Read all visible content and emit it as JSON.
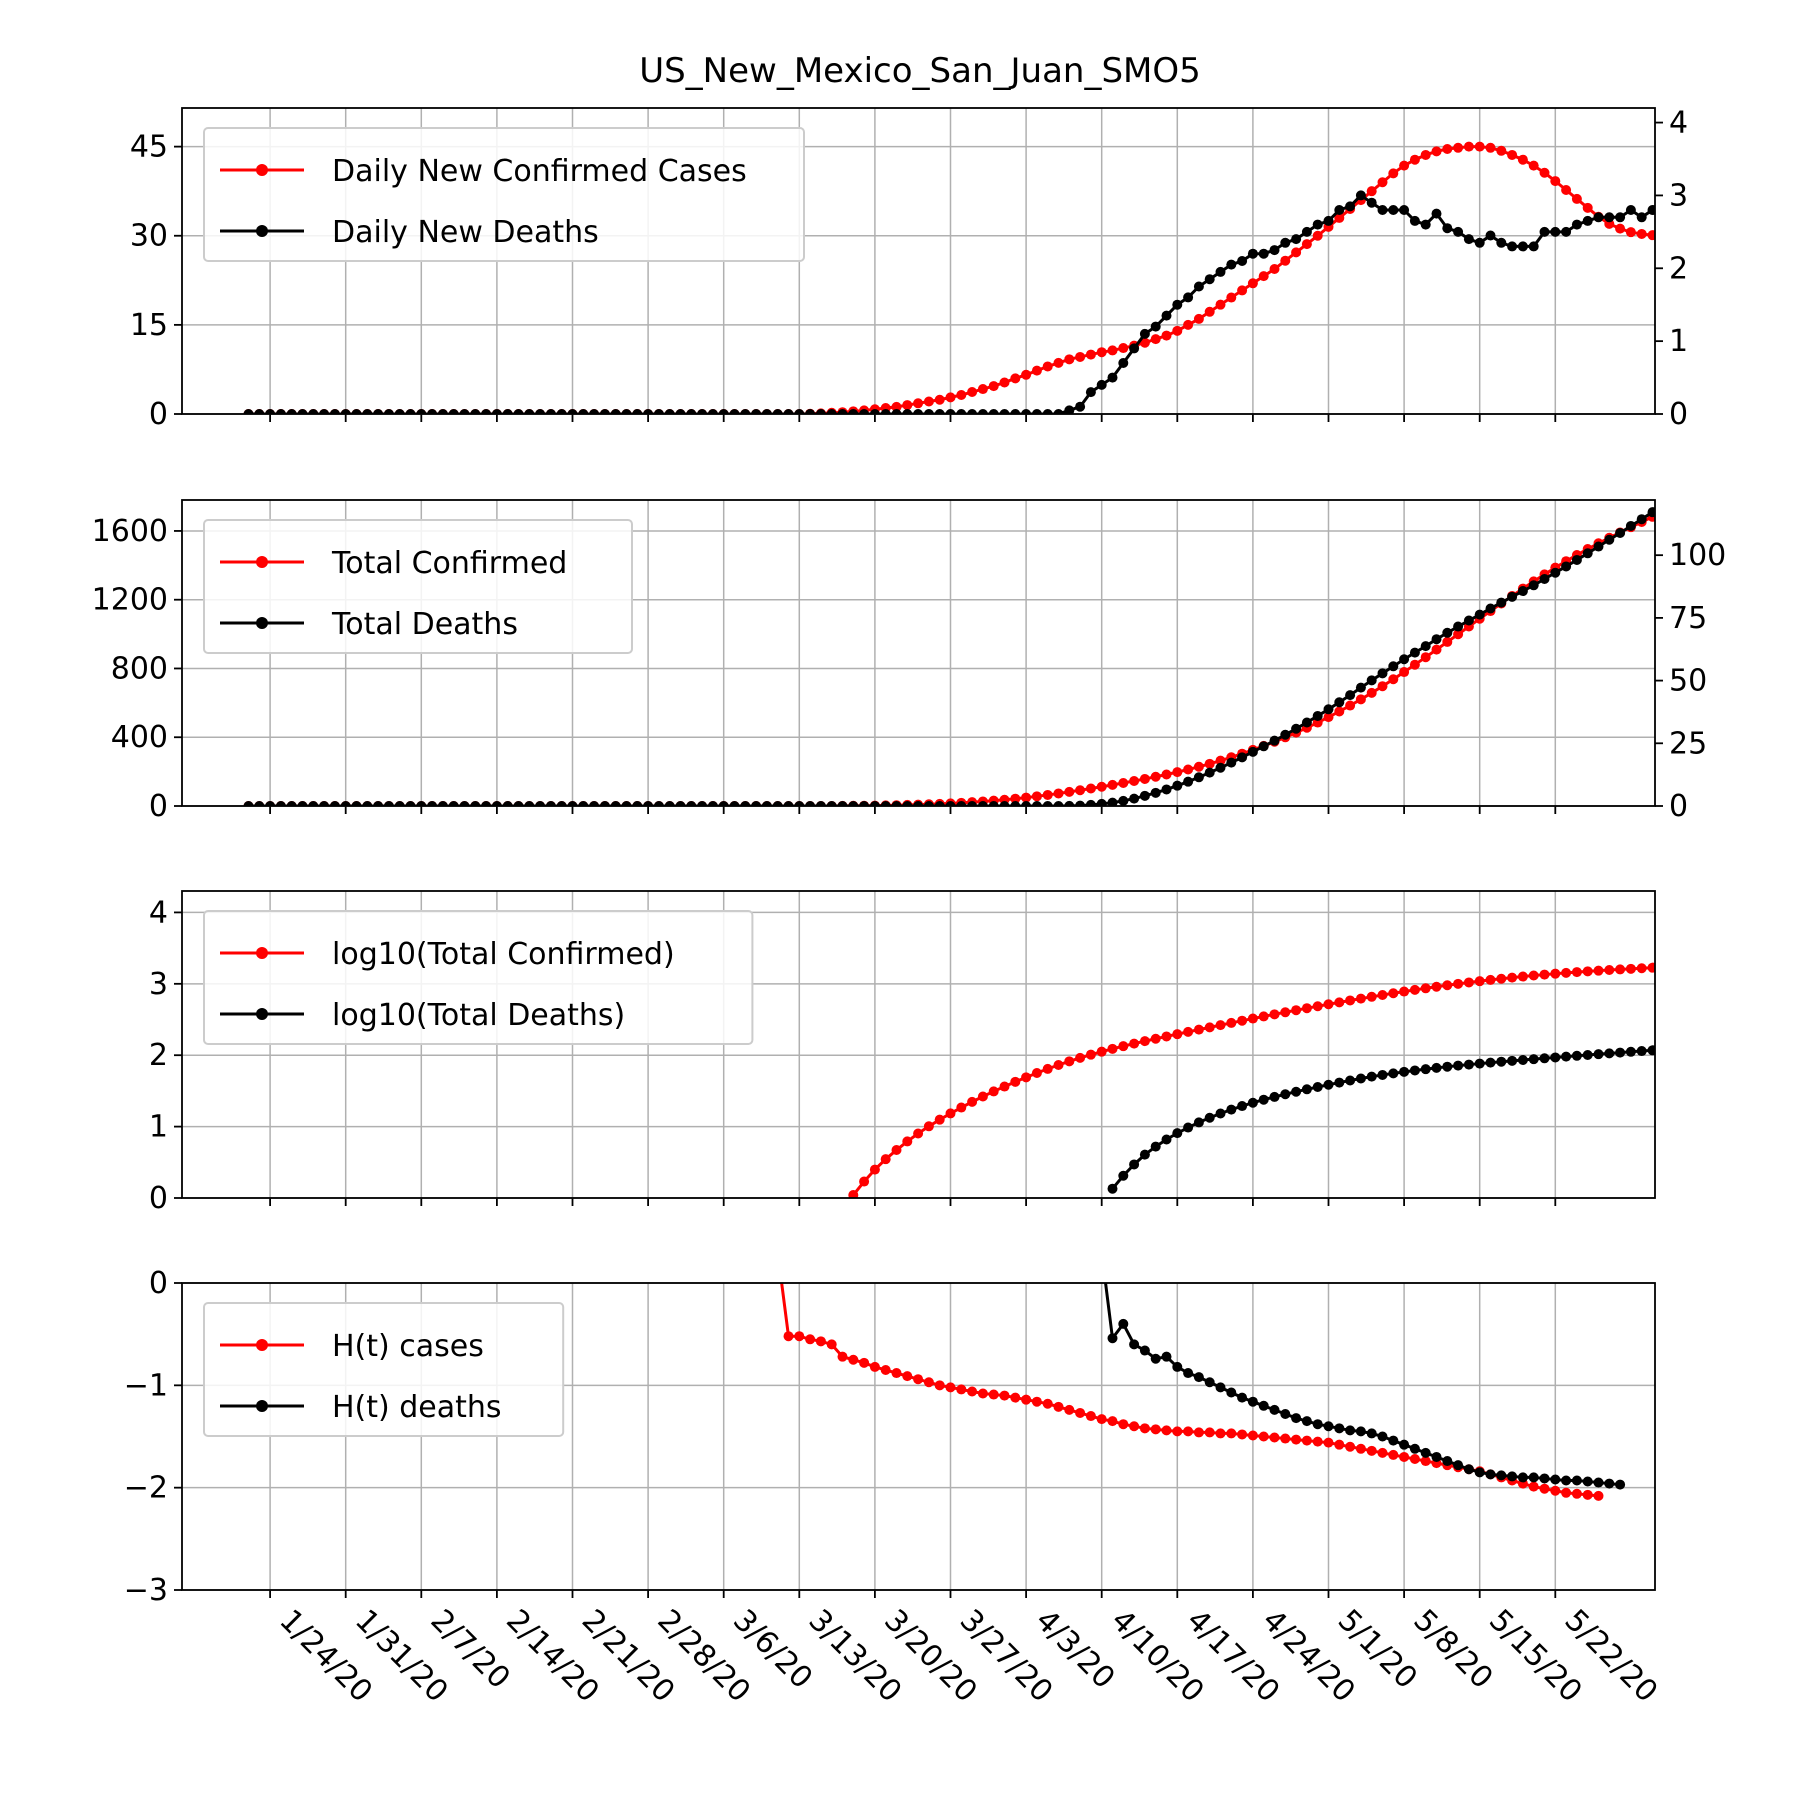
{
  "figure": {
    "title": "US_New_Mexico_San_Juan_SMO5"
  },
  "colors": {
    "cases": "#ff0000",
    "deaths": "#000000",
    "grid": "#b0b0b0"
  },
  "chart_data": [
    {
      "type": "line",
      "title": "US_New_Mexico_San_Juan_SMO5",
      "x_axis": "dates 1/22/20 .. 5/26/20 (daily)",
      "x_start": "1/22/20",
      "x_count": 126,
      "x_tick_labels": [
        "1/24/20",
        "1/31/20",
        "2/7/20",
        "2/14/20",
        "2/21/20",
        "2/28/20",
        "3/6/20",
        "3/13/20",
        "3/20/20",
        "3/27/20",
        "4/3/20",
        "4/10/20",
        "4/17/20",
        "4/24/20",
        "5/1/20",
        "5/8/20",
        "5/15/20",
        "5/22/20"
      ],
      "ylim": [
        0,
        51.5
      ],
      "y_ticks": [
        "0",
        "15",
        "30",
        "45"
      ],
      "y2lim": [
        0,
        4.2
      ],
      "y2_ticks": [
        "0",
        "1",
        "2",
        "3",
        "4"
      ],
      "grid": true,
      "legend_placement": "upper-left",
      "series": [
        {
          "name": "Daily New Confirmed Cases",
          "axis": "left",
          "color": "#ff0000",
          "values": [
            0,
            0,
            0,
            0,
            0,
            0,
            0,
            0,
            0,
            0,
            0,
            0,
            0,
            0,
            0,
            0,
            0,
            0,
            0,
            0,
            0,
            0,
            0,
            0,
            0,
            0,
            0,
            0,
            0,
            0,
            0,
            0,
            0,
            0,
            0,
            0,
            0,
            0,
            0,
            0,
            0,
            0,
            0,
            0,
            0,
            0,
            0,
            0,
            0,
            0,
            0,
            0,
            0.05,
            0.1,
            0.2,
            0.3,
            0.45,
            0.6,
            0.8,
            1.0,
            1.2,
            1.5,
            1.8,
            2.1,
            2.4,
            2.8,
            3.2,
            3.7,
            4.2,
            4.7,
            5.3,
            6.0,
            6.6,
            7.3,
            8.0,
            8.6,
            9.2,
            9.6,
            10.0,
            10.4,
            10.7,
            11.1,
            11.5,
            12.0,
            12.6,
            13.2,
            14.0,
            15.0,
            16.0,
            17.2,
            18.4,
            19.6,
            20.8,
            22.0,
            23.2,
            24.4,
            25.8,
            27.2,
            28.6,
            30.0,
            31.5,
            33.0,
            34.5,
            36.0,
            37.5,
            39.0,
            40.5,
            41.8,
            42.8,
            43.6,
            44.2,
            44.6,
            44.8,
            45.0,
            45.0,
            44.8,
            44.3,
            43.6,
            42.8,
            41.8,
            40.6,
            39.2,
            37.7,
            36.2,
            34.7,
            33.2,
            32.0,
            31.2,
            30.6,
            30.3,
            30.1,
            29.9,
            29.8,
            29.8,
            29.8,
            29.8
          ]
        },
        {
          "name": "Daily New Deaths",
          "axis": "right",
          "color": "#000000",
          "values": [
            0,
            0,
            0,
            0,
            0,
            0,
            0,
            0,
            0,
            0,
            0,
            0,
            0,
            0,
            0,
            0,
            0,
            0,
            0,
            0,
            0,
            0,
            0,
            0,
            0,
            0,
            0,
            0,
            0,
            0,
            0,
            0,
            0,
            0,
            0,
            0,
            0,
            0,
            0,
            0,
            0,
            0,
            0,
            0,
            0,
            0,
            0,
            0,
            0,
            0,
            0,
            0,
            0,
            0,
            0,
            0,
            0,
            0,
            0,
            0,
            0,
            0,
            0,
            0,
            0,
            0,
            0,
            0,
            0,
            0,
            0,
            0,
            0,
            0,
            0,
            0,
            0.05,
            0.1,
            0.3,
            0.4,
            0.5,
            0.7,
            0.9,
            1.1,
            1.2,
            1.35,
            1.5,
            1.6,
            1.75,
            1.85,
            1.95,
            2.05,
            2.1,
            2.2,
            2.2,
            2.25,
            2.35,
            2.4,
            2.5,
            2.6,
            2.65,
            2.8,
            2.85,
            3.0,
            2.9,
            2.8,
            2.8,
            2.8,
            2.65,
            2.6,
            2.75,
            2.55,
            2.5,
            2.4,
            2.35,
            2.45,
            2.35,
            2.3,
            2.3,
            2.3,
            2.5,
            2.5,
            2.5,
            2.6,
            2.65,
            2.7,
            2.7,
            2.7,
            2.8,
            2.7,
            2.8,
            2.7,
            2.8
          ]
        }
      ]
    },
    {
      "type": "line",
      "ylim": [
        0,
        1780
      ],
      "y_ticks": [
        "0",
        "400",
        "800",
        "1200",
        "1600"
      ],
      "y2lim": [
        0,
        122
      ],
      "y2_ticks": [
        "0",
        "25",
        "50",
        "75",
        "100"
      ],
      "grid": true,
      "legend_placement": "upper-left",
      "series": [
        {
          "name": "Total Confirmed",
          "axis": "left",
          "color": "#ff0000",
          "derived_from": "cumulative sum of Daily New Confirmed Cases"
        },
        {
          "name": "Total Deaths",
          "axis": "right",
          "color": "#000000",
          "derived_from": "cumulative sum of Daily New Deaths"
        }
      ]
    },
    {
      "type": "line",
      "ylim": [
        0,
        4.3
      ],
      "y_ticks": [
        "0",
        "1",
        "2",
        "3",
        "4"
      ],
      "grid": true,
      "legend_placement": "upper-left",
      "series": [
        {
          "name": "log10(Total Confirmed)",
          "color": "#ff0000",
          "derived_from": "log10 of Total Confirmed"
        },
        {
          "name": "log10(Total Deaths)",
          "color": "#000000",
          "derived_from": "log10 of Total Deaths"
        }
      ]
    },
    {
      "type": "line",
      "ylim": [
        -3,
        0
      ],
      "y_ticks": [
        "−3",
        "−2",
        "−1",
        "0"
      ],
      "grid": true,
      "legend_placement": "upper-left",
      "series": [
        {
          "name": "H(t) cases",
          "color": "#ff0000",
          "start_date": "3/11/20",
          "values": [
            0.3,
            -0.52,
            -0.52,
            -0.55,
            -0.57,
            -0.6,
            -0.72,
            -0.75,
            -0.78,
            -0.82,
            -0.85,
            -0.88,
            -0.91,
            -0.94,
            -0.97,
            -1.0,
            -1.02,
            -1.04,
            -1.06,
            -1.08,
            -1.09,
            -1.1,
            -1.12,
            -1.14,
            -1.16,
            -1.18,
            -1.21,
            -1.24,
            -1.27,
            -1.3,
            -1.33,
            -1.35,
            -1.38,
            -1.4,
            -1.42,
            -1.43,
            -1.44,
            -1.45,
            -1.45,
            -1.46,
            -1.46,
            -1.47,
            -1.47,
            -1.48,
            -1.49,
            -1.5,
            -1.51,
            -1.52,
            -1.53,
            -1.54,
            -1.55,
            -1.56,
            -1.58,
            -1.6,
            -1.62,
            -1.64,
            -1.66,
            -1.68,
            -1.7,
            -1.72,
            -1.74,
            -1.76,
            -1.78,
            -1.8,
            -1.82,
            -1.84,
            -1.87,
            -1.9,
            -1.93,
            -1.96,
            -1.99,
            -2.01,
            -2.03,
            -2.05,
            -2.06,
            -2.07,
            -2.08
          ]
        },
        {
          "name": "H(t) deaths",
          "color": "#000000",
          "start_date": "4/10/20",
          "values": [
            0.3,
            -0.54,
            -0.4,
            -0.6,
            -0.66,
            -0.74,
            -0.72,
            -0.82,
            -0.88,
            -0.92,
            -0.97,
            -1.02,
            -1.07,
            -1.12,
            -1.16,
            -1.2,
            -1.24,
            -1.28,
            -1.32,
            -1.35,
            -1.38,
            -1.4,
            -1.42,
            -1.44,
            -1.45,
            -1.47,
            -1.5,
            -1.54,
            -1.58,
            -1.62,
            -1.66,
            -1.7,
            -1.74,
            -1.78,
            -1.82,
            -1.85,
            -1.87,
            -1.88,
            -1.89,
            -1.9,
            -1.9,
            -1.91,
            -1.92,
            -1.93,
            -1.93,
            -1.94,
            -1.95,
            -1.96,
            -1.97
          ]
        }
      ]
    }
  ]
}
